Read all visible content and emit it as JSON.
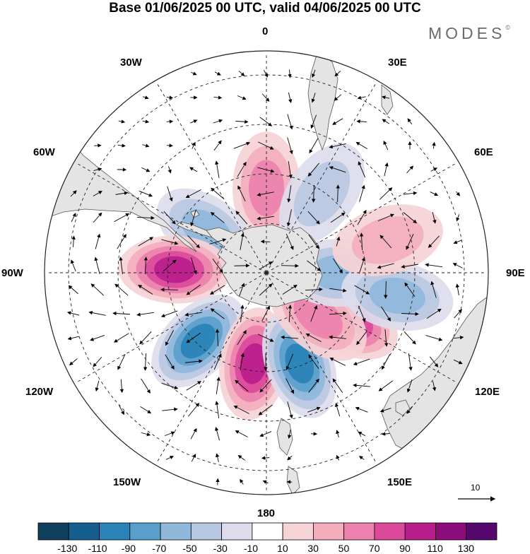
{
  "title": "Base 01/06/2025 00 UTC, valid 04/06/2025 00 UTC",
  "brand": "MODES",
  "brand_mark": "©",
  "longitude_labels": {
    "top": "0",
    "top_right": "30E",
    "top_left": "30W",
    "right_upper": "60E",
    "left_upper": "60W",
    "right": "90E",
    "left": "90W",
    "right_lower": "120E",
    "left_lower": "120W",
    "bottom_right": "150E",
    "bottom_left": "150W",
    "bottom": "180"
  },
  "vector_reference": "10",
  "colorbar": {
    "ticks": [
      "-130",
      "-110",
      "-90",
      "-70",
      "-50",
      "-30",
      "-10",
      "10",
      "30",
      "50",
      "70",
      "90",
      "110",
      "130"
    ],
    "colors": [
      "#0e3f5c",
      "#145f8e",
      "#2a82b8",
      "#5a9fcb",
      "#8fb8db",
      "#b8c8e2",
      "#dcdcec",
      "#ffffff",
      "#f6d3d6",
      "#f3afbe",
      "#ec82ad",
      "#dc4a9c",
      "#b81d8c",
      "#8c0c79",
      "#55086e"
    ]
  },
  "anomaly_centers": [
    {
      "lon": 0,
      "lat": -55,
      "value": 60
    },
    {
      "lon": 35,
      "lat": -50,
      "value": -50
    },
    {
      "lon": -55,
      "lat": -60,
      "value": -60
    },
    {
      "lon": -88,
      "lat": -52,
      "value": 100
    },
    {
      "lon": -135,
      "lat": -50,
      "value": -100
    },
    {
      "lon": -172,
      "lat": -52,
      "value": 100
    },
    {
      "lon": 160,
      "lat": -50,
      "value": -100
    },
    {
      "lon": 120,
      "lat": -52,
      "value": 100
    },
    {
      "lon": 130,
      "lat": -62,
      "value": 75
    },
    {
      "lon": 90,
      "lat": -60,
      "value": -60
    },
    {
      "lon": 100,
      "lat": -35,
      "value": -60
    },
    {
      "lon": 75,
      "lat": -38,
      "value": 40
    }
  ],
  "colors": {
    "land": "#e4e4e4",
    "coast": "#555555",
    "graticule": "#222222"
  }
}
